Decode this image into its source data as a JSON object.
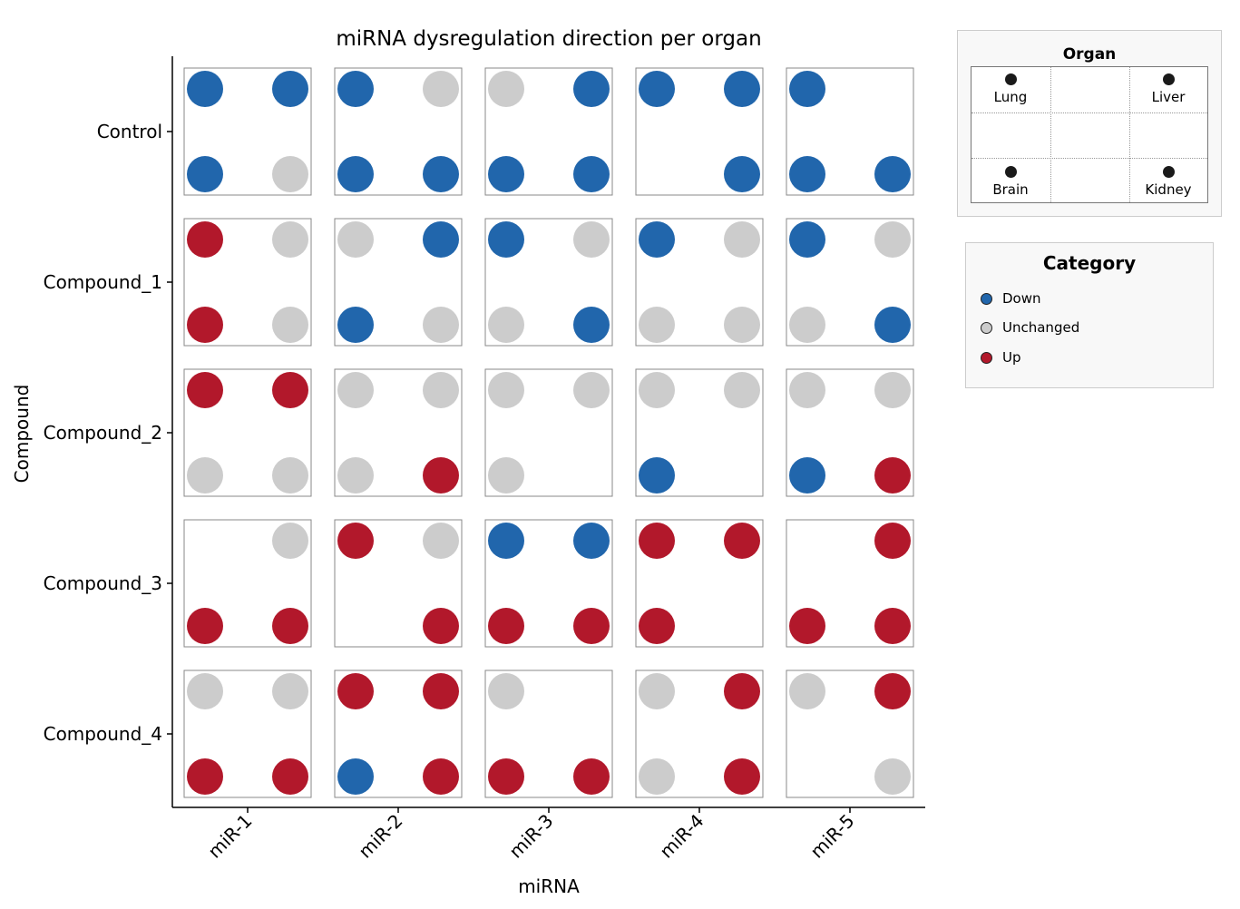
{
  "chart_data": {
    "type": "scatter",
    "title": "miRNA dysregulation direction per organ",
    "xlabel": "miRNA",
    "ylabel": "Compound",
    "x_categories": [
      "miR-1",
      "miR-2",
      "miR-3",
      "miR-4",
      "miR-5"
    ],
    "y_categories": [
      "Control",
      "Compound_1",
      "Compound_2",
      "Compound_3",
      "Compound_4"
    ],
    "organs": [
      "Lung",
      "Liver",
      "Brain",
      "Kidney"
    ],
    "categories": [
      "Down",
      "Unchanged",
      "Up"
    ],
    "colors": {
      "Down": "#2166ac",
      "Unchanged": "#cccccc",
      "Up": "#b2182b"
    },
    "values": [
      [
        {
          "Lung": "Down",
          "Liver": "Down",
          "Brain": "Down",
          "Kidney": "Unchanged"
        },
        {
          "Lung": "Down",
          "Liver": "Unchanged",
          "Brain": "Down",
          "Kidney": "Down"
        },
        {
          "Lung": "Unchanged",
          "Liver": "Down",
          "Brain": "Down",
          "Kidney": "Down"
        },
        {
          "Lung": "Down",
          "Liver": "Down",
          "Brain": null,
          "Kidney": "Down"
        },
        {
          "Lung": "Down",
          "Liver": null,
          "Brain": "Down",
          "Kidney": "Down"
        }
      ],
      [
        {
          "Lung": "Up",
          "Liver": "Unchanged",
          "Brain": "Up",
          "Kidney": "Unchanged"
        },
        {
          "Lung": "Unchanged",
          "Liver": "Down",
          "Brain": "Down",
          "Kidney": "Unchanged"
        },
        {
          "Lung": "Down",
          "Liver": "Unchanged",
          "Brain": "Unchanged",
          "Kidney": "Down"
        },
        {
          "Lung": "Down",
          "Liver": "Unchanged",
          "Brain": "Unchanged",
          "Kidney": "Unchanged"
        },
        {
          "Lung": "Down",
          "Liver": "Unchanged",
          "Brain": "Unchanged",
          "Kidney": "Down"
        }
      ],
      [
        {
          "Lung": "Up",
          "Liver": "Up",
          "Brain": "Unchanged",
          "Kidney": "Unchanged"
        },
        {
          "Lung": "Unchanged",
          "Liver": "Unchanged",
          "Brain": "Unchanged",
          "Kidney": "Up"
        },
        {
          "Lung": "Unchanged",
          "Liver": "Unchanged",
          "Brain": "Unchanged",
          "Kidney": null
        },
        {
          "Lung": "Unchanged",
          "Liver": "Unchanged",
          "Brain": "Down",
          "Kidney": null
        },
        {
          "Lung": "Unchanged",
          "Liver": "Unchanged",
          "Brain": "Down",
          "Kidney": "Up"
        }
      ],
      [
        {
          "Lung": null,
          "Liver": "Unchanged",
          "Brain": "Up",
          "Kidney": "Up"
        },
        {
          "Lung": "Up",
          "Liver": "Unchanged",
          "Brain": null,
          "Kidney": "Up"
        },
        {
          "Lung": "Down",
          "Liver": "Down",
          "Brain": "Up",
          "Kidney": "Up"
        },
        {
          "Lung": "Up",
          "Liver": "Up",
          "Brain": "Up",
          "Kidney": null
        },
        {
          "Lung": null,
          "Liver": "Up",
          "Brain": "Up",
          "Kidney": "Up"
        }
      ],
      [
        {
          "Lung": "Unchanged",
          "Liver": "Unchanged",
          "Brain": "Up",
          "Kidney": "Up"
        },
        {
          "Lung": "Up",
          "Liver": "Up",
          "Brain": "Down",
          "Kidney": "Up"
        },
        {
          "Lung": "Unchanged",
          "Liver": null,
          "Brain": "Up",
          "Kidney": "Up"
        },
        {
          "Lung": "Unchanged",
          "Liver": "Up",
          "Brain": "Unchanged",
          "Kidney": "Up"
        },
        {
          "Lung": "Unchanged",
          "Liver": "Up",
          "Brain": null,
          "Kidney": "Unchanged"
        }
      ]
    ]
  },
  "legend": {
    "organ_title": "Organ",
    "organ_labels": [
      "Lung",
      "Liver",
      "Brain",
      "Kidney"
    ],
    "category_title": "Category",
    "category_labels": [
      "Down",
      "Unchanged",
      "Up"
    ]
  }
}
